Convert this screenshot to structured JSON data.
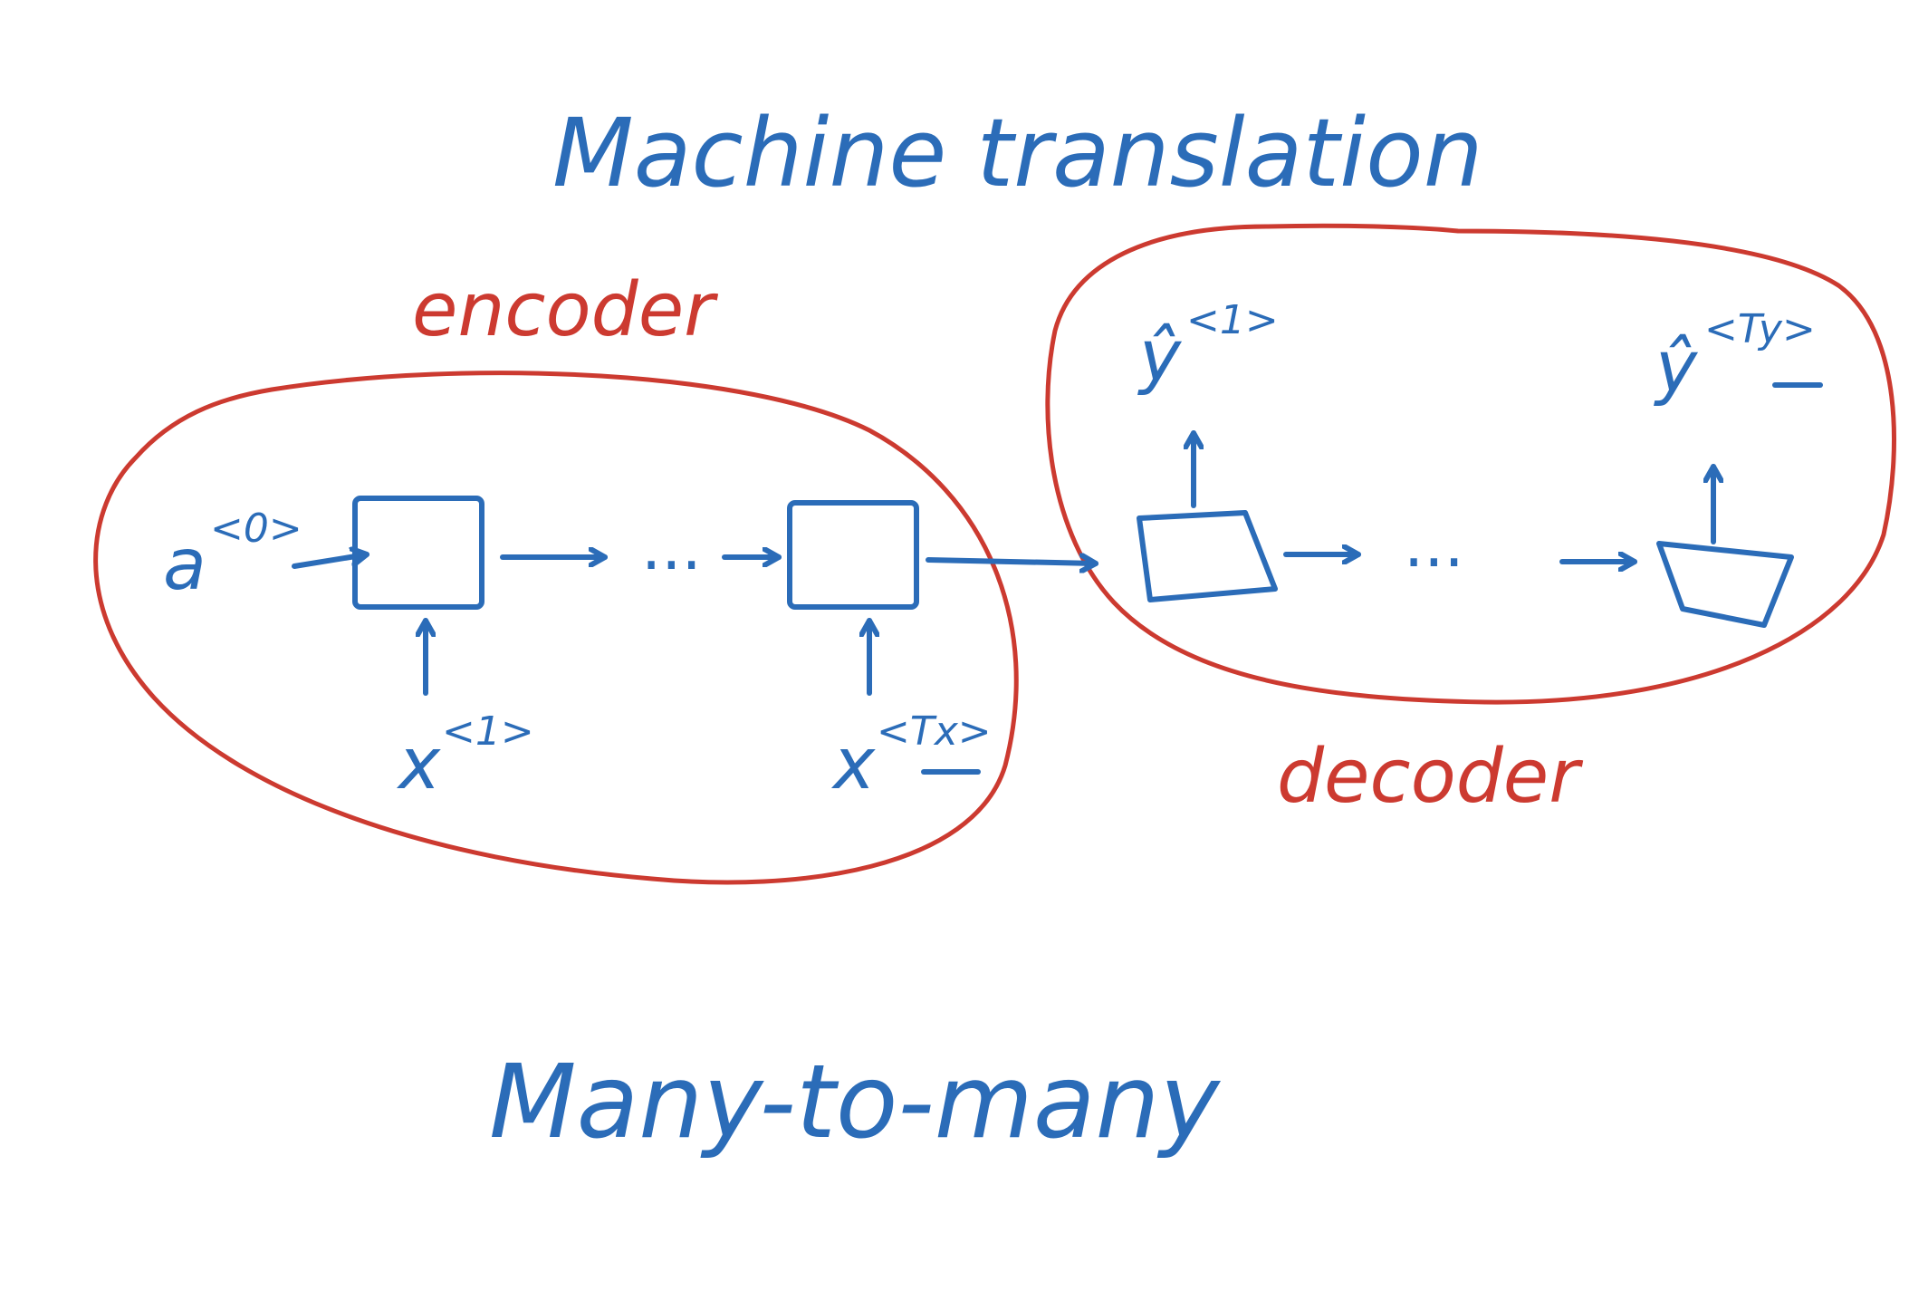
{
  "title": "Machine translation",
  "encoder_label": "encoder",
  "decoder_label": "decoder",
  "caption": "Many-to-many",
  "nodes": {
    "a0": {
      "base": "a",
      "sup": "<0>"
    },
    "x1": {
      "base": "x",
      "sup": "<1>"
    },
    "xTx": {
      "base": "x",
      "sup": "<Tx>"
    },
    "y1": {
      "base": "ŷ",
      "sup": "<1>"
    },
    "yTy": {
      "base": "ŷ",
      "sup": "<Ty>"
    }
  },
  "ellipsis": "...",
  "colors": {
    "ink_blue": "#2b6cb8",
    "ink_red": "#cc3a30",
    "background": "#ffffff"
  }
}
